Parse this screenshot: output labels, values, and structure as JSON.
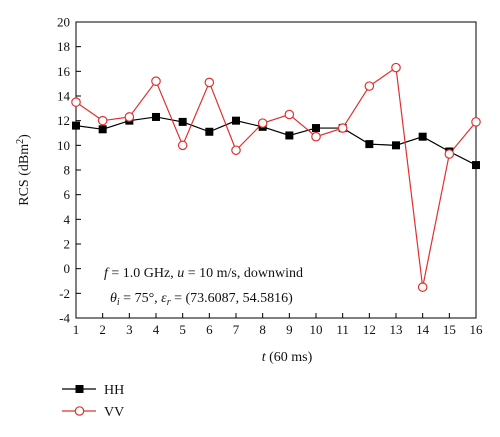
{
  "chart_data": {
    "type": "line",
    "x": [
      1,
      2,
      3,
      4,
      5,
      6,
      7,
      8,
      9,
      10,
      11,
      12,
      13,
      14,
      15,
      16
    ],
    "xlim": [
      1,
      16
    ],
    "ylim": [
      -4,
      20
    ],
    "xticks": [
      1,
      2,
      3,
      4,
      5,
      6,
      7,
      8,
      9,
      10,
      11,
      12,
      13,
      14,
      15,
      16
    ],
    "yticks": [
      -4,
      -2,
      0,
      2,
      4,
      6,
      8,
      10,
      12,
      14,
      16,
      18,
      20
    ],
    "xlabel": {
      "var": "t",
      "unit": "(60 ms)"
    },
    "ylabel": {
      "base": "RCS (dBm",
      "sup": "2",
      "tail": ")"
    },
    "grid": false,
    "legend_position": "bottom-left, below plot",
    "series": [
      {
        "name": "HH",
        "color": "#000000",
        "marker": "filled-square",
        "values": [
          11.6,
          11.3,
          12.0,
          12.3,
          11.9,
          11.1,
          12.0,
          11.5,
          10.8,
          11.4,
          11.4,
          10.1,
          10.0,
          10.7,
          9.5,
          8.4
        ]
      },
      {
        "name": "VV",
        "color": "#e03030",
        "marker": "open-circle",
        "values": [
          13.5,
          12.0,
          12.3,
          15.2,
          10.0,
          15.1,
          9.6,
          11.8,
          12.5,
          10.7,
          11.4,
          14.8,
          16.3,
          -1.5,
          9.3,
          11.9
        ]
      }
    ],
    "annotations": {
      "line1": {
        "f_sym": "f",
        "f_val": " = 1.0 GHz, ",
        "u_sym": "u",
        "u_val": " = 10 m/s, downwind"
      },
      "line2": {
        "theta_sym": "θ",
        "theta_sub": "i",
        "theta_val": " = 75°, ",
        "eps_sym": "ε",
        "eps_sub": "r",
        "eps_val": " = (73.6087, 54.5816)"
      }
    }
  }
}
